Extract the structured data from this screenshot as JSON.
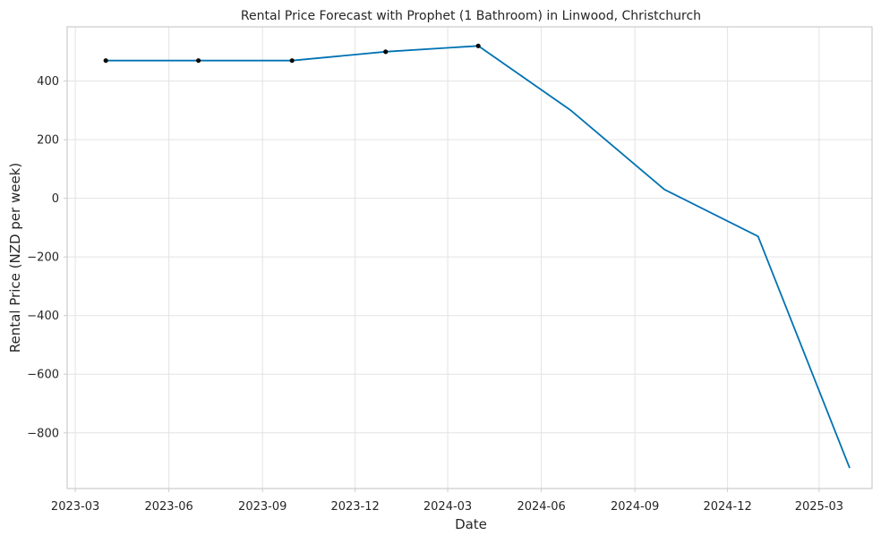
{
  "chart_data": {
    "type": "line",
    "title": "Rental Price Forecast with Prophet (1 Bathroom) in Linwood, Christchurch",
    "xlabel": "Date",
    "ylabel": "Rental Price (NZD per week)",
    "x_ticks": [
      "2023-03",
      "2023-06",
      "2023-09",
      "2023-12",
      "2024-03",
      "2024-06",
      "2024-09",
      "2024-12",
      "2025-03"
    ],
    "y_ticks": [
      400,
      200,
      0,
      -200,
      -400,
      -600,
      -800
    ],
    "y_tick_labels": [
      "400",
      "200",
      "0",
      "−200",
      "−400",
      "−600",
      "−800"
    ],
    "xlim": [
      "2023-02-21",
      "2025-04-22"
    ],
    "ylim": [
      -990,
      585
    ],
    "grid": true,
    "series": [
      {
        "kind": "observed",
        "x": [
          "2023-03-31",
          "2023-06-30",
          "2023-09-30",
          "2023-12-31",
          "2024-03-31"
        ],
        "y": [
          470,
          470,
          470,
          500,
          520
        ],
        "color": "#0a0a0a"
      },
      {
        "kind": "forecast",
        "x": [
          "2023-03-31",
          "2023-06-30",
          "2023-09-30",
          "2023-12-31",
          "2024-03-31",
          "2024-06-30",
          "2024-09-30",
          "2024-12-31",
          "2025-03-31"
        ],
        "y": [
          470,
          470,
          470,
          500,
          520,
          300,
          30,
          -130,
          -920
        ],
        "color": "#0072B2"
      }
    ]
  }
}
